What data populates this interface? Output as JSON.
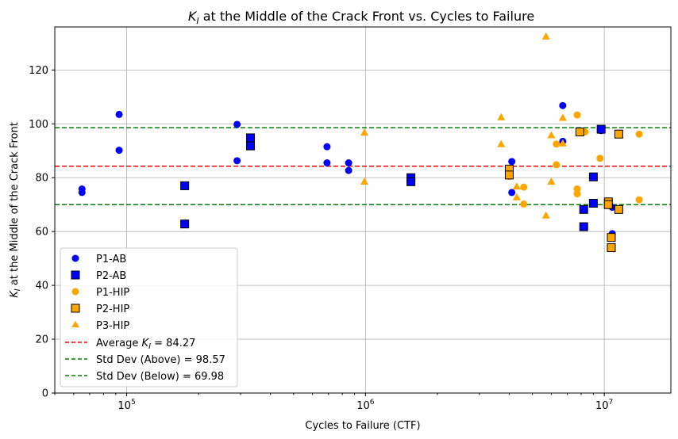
{
  "chart_data": {
    "type": "scatter",
    "title": "at the Middle of the Crack Front vs. Cycles to Failure",
    "title_symbol": "K",
    "title_subscript": "I",
    "xlabel": "Cycles to Failure (CTF)",
    "ylabel": "at the Middle of the Crack Front",
    "ylabel_symbol": "K",
    "ylabel_subscript": "I",
    "x_scale": "log",
    "xlim": [
      50000,
      19000000
    ],
    "ylim": [
      0,
      136
    ],
    "x_ticks": [
      {
        "value": 100000,
        "base": "10",
        "exp": "5"
      },
      {
        "value": 1000000,
        "base": "10",
        "exp": "6"
      },
      {
        "value": 10000000,
        "base": "10",
        "exp": "7"
      }
    ],
    "y_ticks": [
      0,
      20,
      40,
      60,
      80,
      100,
      120
    ],
    "grid": true,
    "legend_position": "lower-left",
    "series": [
      {
        "name": "P1-AB",
        "marker": "circle",
        "color": "#0000ff",
        "points": [
          [
            65000,
            74.5
          ],
          [
            65000,
            75.8
          ],
          [
            93000,
            103.5
          ],
          [
            93000,
            90.2
          ],
          [
            290000,
            99.8
          ],
          [
            290000,
            86.3
          ],
          [
            330000,
            93.0
          ],
          [
            690000,
            91.5
          ],
          [
            690000,
            85.5
          ],
          [
            850000,
            85.5
          ],
          [
            850000,
            82.7
          ],
          [
            1550000,
            80.0
          ],
          [
            4100000,
            86.0
          ],
          [
            4100000,
            74.5
          ],
          [
            6700000,
            106.8
          ],
          [
            6700000,
            93.5
          ],
          [
            9700000,
            97.5
          ],
          [
            10800000,
            69.0
          ],
          [
            10800000,
            59.2
          ]
        ]
      },
      {
        "name": "P2-AB",
        "marker": "square",
        "color": "#0000ff",
        "points": [
          [
            175000,
            77.0
          ],
          [
            175000,
            62.8
          ],
          [
            330000,
            94.8
          ],
          [
            330000,
            91.8
          ],
          [
            1550000,
            80.0
          ],
          [
            1550000,
            78.5
          ],
          [
            8200000,
            68.2
          ],
          [
            8200000,
            61.8
          ],
          [
            9000000,
            80.3
          ],
          [
            9000000,
            70.5
          ],
          [
            9700000,
            98.0
          ]
        ]
      },
      {
        "name": "P1-HIP",
        "marker": "circle",
        "color": "#ffa500",
        "points": [
          [
            4000000,
            83.0
          ],
          [
            4000000,
            80.5
          ],
          [
            4600000,
            76.5
          ],
          [
            4600000,
            70.2
          ],
          [
            6300000,
            92.5
          ],
          [
            6300000,
            84.8
          ],
          [
            7700000,
            103.3
          ],
          [
            7700000,
            75.8
          ],
          [
            7700000,
            74.0
          ],
          [
            8300000,
            97.0
          ],
          [
            9600000,
            87.2
          ],
          [
            14000000,
            96.2
          ],
          [
            14000000,
            71.8
          ]
        ]
      },
      {
        "name": "P2-HIP",
        "marker": "square",
        "color": "#ffa500",
        "points": [
          [
            4000000,
            83.2
          ],
          [
            4000000,
            81.0
          ],
          [
            7900000,
            97.0
          ],
          [
            10400000,
            71.0
          ],
          [
            10400000,
            70.0
          ],
          [
            10700000,
            57.8
          ],
          [
            10700000,
            54.0
          ],
          [
            11500000,
            96.2
          ],
          [
            11500000,
            68.2
          ]
        ]
      },
      {
        "name": "P3-HIP",
        "marker": "triangle",
        "color": "#ffa500",
        "points": [
          [
            990000,
            96.8
          ],
          [
            990000,
            78.6
          ],
          [
            3700000,
            102.5
          ],
          [
            3700000,
            92.5
          ],
          [
            4300000,
            76.8
          ],
          [
            4300000,
            72.8
          ],
          [
            5700000,
            132.5
          ],
          [
            5700000,
            66.0
          ],
          [
            6000000,
            95.8
          ],
          [
            6000000,
            78.6
          ],
          [
            6700000,
            102.3
          ],
          [
            6700000,
            92.8
          ]
        ]
      }
    ],
    "reference_lines": [
      {
        "label": "Average",
        "label_symbol": "K",
        "label_subscript": "I",
        "label_value": "= 84.27",
        "value": 84.27,
        "color": "#ff0000"
      },
      {
        "label": "Std Dev (Above) = 98.57",
        "value": 98.57,
        "color": "#008000"
      },
      {
        "label": "Std Dev (Below) = 69.98",
        "value": 69.98,
        "color": "#008000"
      }
    ]
  }
}
